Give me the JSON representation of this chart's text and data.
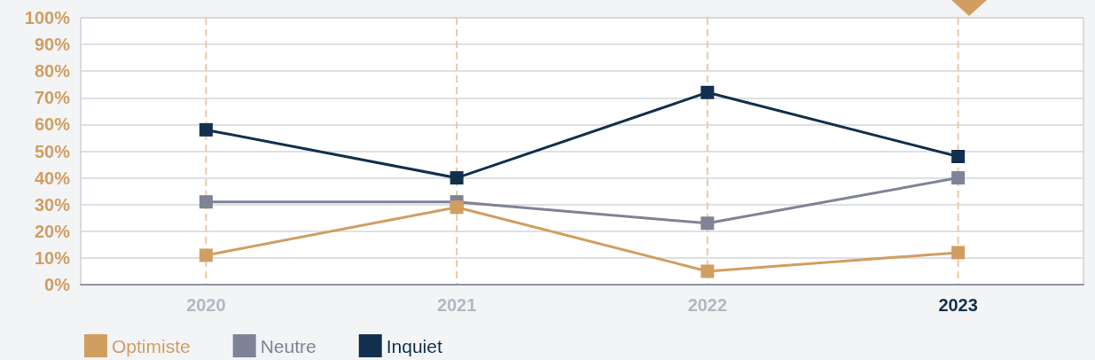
{
  "chart_data": {
    "type": "line",
    "categories": [
      "2020",
      "2021",
      "2022",
      "2023"
    ],
    "series": [
      {
        "name": "Optimiste",
        "color": "#d19e62",
        "values": [
          11,
          29,
          5,
          12
        ]
      },
      {
        "name": "Neutre",
        "color": "#7f8396",
        "values": [
          31,
          31,
          23,
          40
        ]
      },
      {
        "name": "Inquiet",
        "color": "#12304d",
        "values": [
          58,
          40,
          72,
          48
        ]
      }
    ],
    "ylim": [
      0,
      100
    ],
    "yticks": [
      {
        "value": 0,
        "label": "0%"
      },
      {
        "value": 10,
        "label": "10%"
      },
      {
        "value": 20,
        "label": "20%"
      },
      {
        "value": 30,
        "label": "30%"
      },
      {
        "value": 40,
        "label": "40%"
      },
      {
        "value": 50,
        "label": "50%"
      },
      {
        "value": 60,
        "label": "60%"
      },
      {
        "value": 70,
        "label": "70%"
      },
      {
        "value": 80,
        "label": "80%"
      },
      {
        "value": 90,
        "label": "90%"
      },
      {
        "value": 100,
        "label": "100%"
      }
    ],
    "grid": true,
    "legend": "bottom left",
    "marker": "square",
    "line_style": "solid"
  }
}
